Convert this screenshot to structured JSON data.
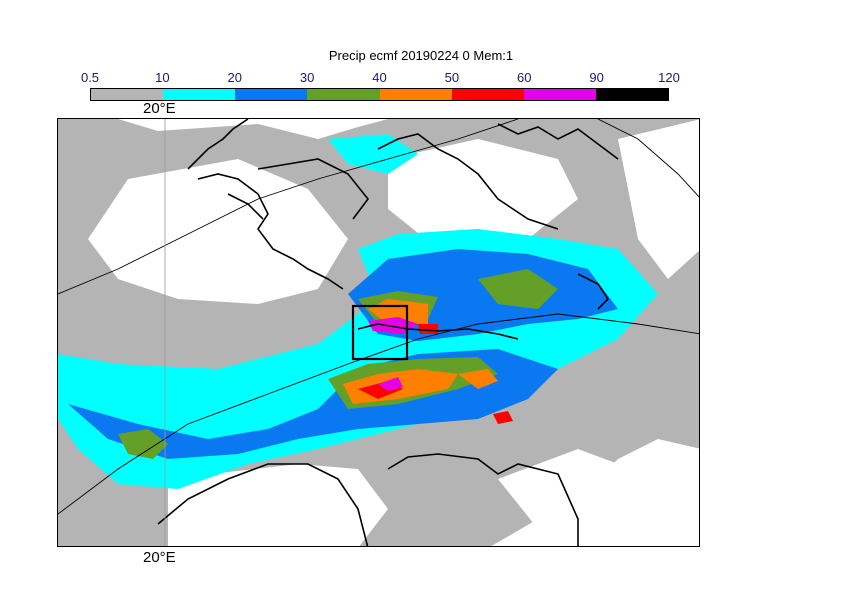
{
  "title": "Precip ecmf 20190224 0 Mem:1",
  "colorbar": {
    "ticks": [
      "0.5",
      "10",
      "20",
      "30",
      "40",
      "50",
      "60",
      "90",
      "120"
    ],
    "colors": [
      "#b4b4b4",
      "#00ffff",
      "#0a78f0",
      "#64a028",
      "#ff8000",
      "#ff0000",
      "#e600e6",
      "#000000"
    ]
  },
  "map": {
    "lon_label_top": "20°E",
    "lon_label_bottom": "20°E",
    "background_color": "#ffffff",
    "coast_color": "#000000"
  }
}
